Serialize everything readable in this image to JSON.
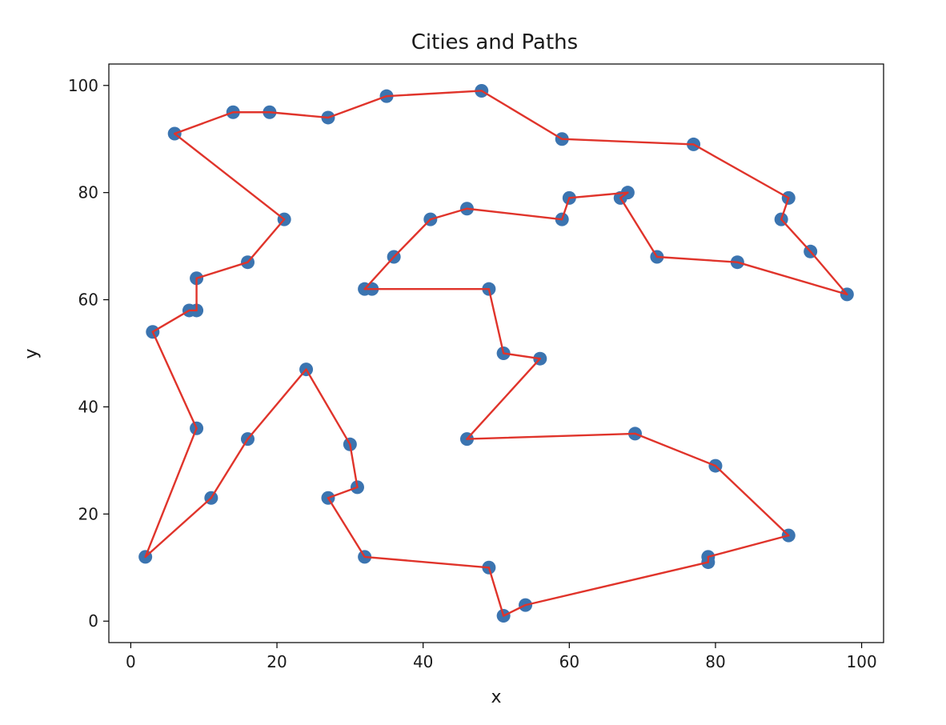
{
  "chart_data": {
    "type": "scatter",
    "title": "Cities and Paths",
    "xlabel": "x",
    "ylabel": "y",
    "xlim": [
      -3,
      103
    ],
    "ylim": [
      -4,
      104
    ],
    "xticks": [
      0,
      20,
      40,
      60,
      80,
      100
    ],
    "yticks": [
      0,
      20,
      40,
      60,
      80,
      100
    ],
    "xtick_labels": [
      "0",
      "20",
      "40",
      "60",
      "80",
      "100"
    ],
    "ytick_labels": [
      "0",
      "20",
      "40",
      "60",
      "80",
      "100"
    ],
    "grid": false,
    "series": [
      {
        "kind": "points",
        "color": "#3b74b0",
        "points": [
          [
            6,
            91
          ],
          [
            14,
            95
          ],
          [
            19,
            95
          ],
          [
            27,
            94
          ],
          [
            35,
            98
          ],
          [
            48,
            99
          ],
          [
            59,
            90
          ],
          [
            77,
            89
          ],
          [
            90,
            79
          ],
          [
            89,
            75
          ],
          [
            93,
            69
          ],
          [
            98,
            61
          ],
          [
            83,
            67
          ],
          [
            72,
            68
          ],
          [
            67,
            79
          ],
          [
            68,
            80
          ],
          [
            60,
            79
          ],
          [
            59,
            75
          ],
          [
            46,
            77
          ],
          [
            41,
            75
          ],
          [
            36,
            68
          ],
          [
            32,
            62
          ],
          [
            33,
            62
          ],
          [
            49,
            62
          ],
          [
            51,
            50
          ],
          [
            56,
            49
          ],
          [
            46,
            34
          ],
          [
            69,
            35
          ],
          [
            80,
            29
          ],
          [
            90,
            16
          ],
          [
            79,
            12
          ],
          [
            79,
            11
          ],
          [
            54,
            3
          ],
          [
            51,
            1
          ],
          [
            49,
            10
          ],
          [
            32,
            12
          ],
          [
            27,
            23
          ],
          [
            31,
            25
          ],
          [
            30,
            33
          ],
          [
            24,
            47
          ],
          [
            16,
            34
          ],
          [
            11,
            23
          ],
          [
            2,
            12
          ],
          [
            9,
            36
          ],
          [
            3,
            54
          ],
          [
            8,
            58
          ],
          [
            9,
            58
          ],
          [
            9,
            64
          ],
          [
            16,
            67
          ],
          [
            21,
            75
          ]
        ]
      },
      {
        "kind": "path",
        "color": "#e0342b",
        "points": [
          [
            6,
            91
          ],
          [
            14,
            95
          ],
          [
            19,
            95
          ],
          [
            27,
            94
          ],
          [
            35,
            98
          ],
          [
            48,
            99
          ],
          [
            59,
            90
          ],
          [
            77,
            89
          ],
          [
            90,
            79
          ],
          [
            89,
            75
          ],
          [
            93,
            69
          ],
          [
            98,
            61
          ],
          [
            83,
            67
          ],
          [
            72,
            68
          ],
          [
            67,
            79
          ],
          [
            68,
            80
          ],
          [
            60,
            79
          ],
          [
            59,
            75
          ],
          [
            46,
            77
          ],
          [
            41,
            75
          ],
          [
            36,
            68
          ],
          [
            32,
            62
          ],
          [
            33,
            62
          ],
          [
            49,
            62
          ],
          [
            51,
            50
          ],
          [
            56,
            49
          ],
          [
            46,
            34
          ],
          [
            69,
            35
          ],
          [
            80,
            29
          ],
          [
            90,
            16
          ],
          [
            79,
            12
          ],
          [
            79,
            11
          ],
          [
            54,
            3
          ],
          [
            51,
            1
          ],
          [
            49,
            10
          ],
          [
            32,
            12
          ],
          [
            27,
            23
          ],
          [
            31,
            25
          ],
          [
            30,
            33
          ],
          [
            24,
            47
          ],
          [
            16,
            34
          ],
          [
            11,
            23
          ],
          [
            2,
            12
          ],
          [
            9,
            36
          ],
          [
            3,
            54
          ],
          [
            8,
            58
          ],
          [
            9,
            58
          ],
          [
            9,
            64
          ],
          [
            16,
            67
          ],
          [
            21,
            75
          ],
          [
            6,
            91
          ]
        ]
      }
    ]
  }
}
